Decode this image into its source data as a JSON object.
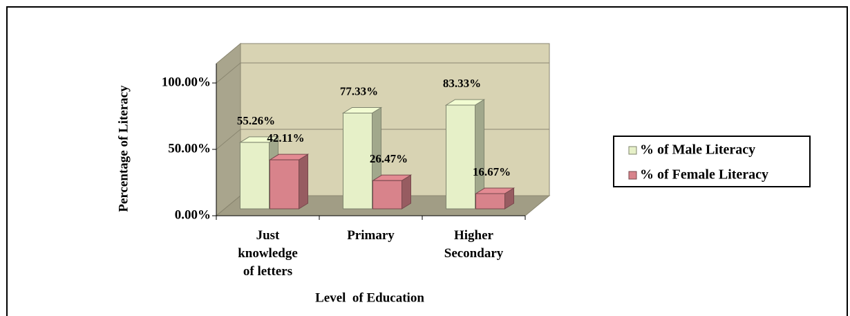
{
  "chart_data": {
    "type": "bar3d",
    "categories": [
      "Just\nknowledge\nof letters",
      "Primary",
      "Higher\nSecondary"
    ],
    "series": [
      {
        "name": "% of Male Literacy",
        "color": "#e6f0c8",
        "values": [
          55.26,
          77.33,
          83.33
        ],
        "value_labels": [
          "55.26%",
          "77.33%",
          "83.33%"
        ]
      },
      {
        "name": "% of Female Literacy",
        "color": "#d8838b",
        "values": [
          42.11,
          26.47,
          16.67
        ],
        "value_labels": [
          "42.11%",
          "26.47%",
          "16.67%"
        ]
      }
    ],
    "ylim": [
      0,
      100
    ],
    "yticks": [
      {
        "value": 0,
        "label": "0.00%"
      },
      {
        "value": 50,
        "label": "50.00%"
      },
      {
        "value": 100,
        "label": "100.00%"
      }
    ],
    "y_label": "Percentage of Literacy",
    "x_label": "Level  of Education",
    "grid": true,
    "legend": "right"
  }
}
